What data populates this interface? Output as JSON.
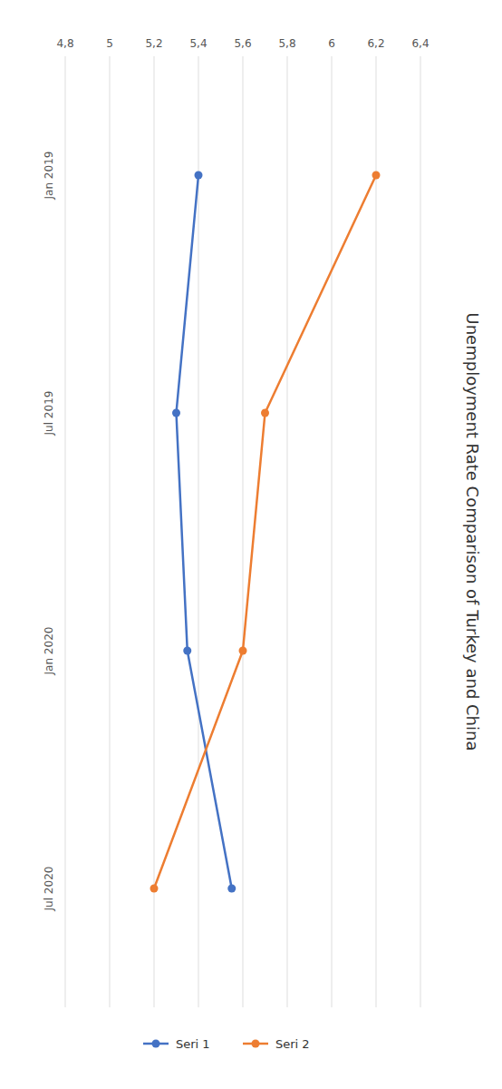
{
  "chart_data": {
    "type": "line",
    "orientation": "horizontal",
    "title": "Unemployment Rate Comparison of Turkey and China",
    "categories": [
      "Jan 2019",
      "Jul 2019",
      "Jan 2020",
      "Jul 2020"
    ],
    "series": [
      {
        "name": "Seri 1",
        "color": "#4472C4",
        "values": [
          5.4,
          5.3,
          5.35,
          5.55
        ]
      },
      {
        "name": "Seri 2",
        "color": "#ED7D31",
        "values": [
          6.2,
          5.7,
          5.6,
          5.2
        ]
      }
    ],
    "xlim": [
      4.8,
      6.4
    ],
    "xticks": [
      {
        "value": 4.8,
        "label": "4,8"
      },
      5,
      {
        "value": 5.2,
        "label": "5,2"
      },
      {
        "value": 5.4,
        "label": "5,4"
      },
      {
        "value": 5.6,
        "label": "5,6"
      },
      {
        "value": 5.8,
        "label": "5,8"
      },
      6,
      {
        "value": 6.2,
        "label": "6,2"
      },
      {
        "value": 6.4,
        "label": "6,4"
      }
    ],
    "grid": true,
    "marker": "circle",
    "legend": "bottom"
  }
}
